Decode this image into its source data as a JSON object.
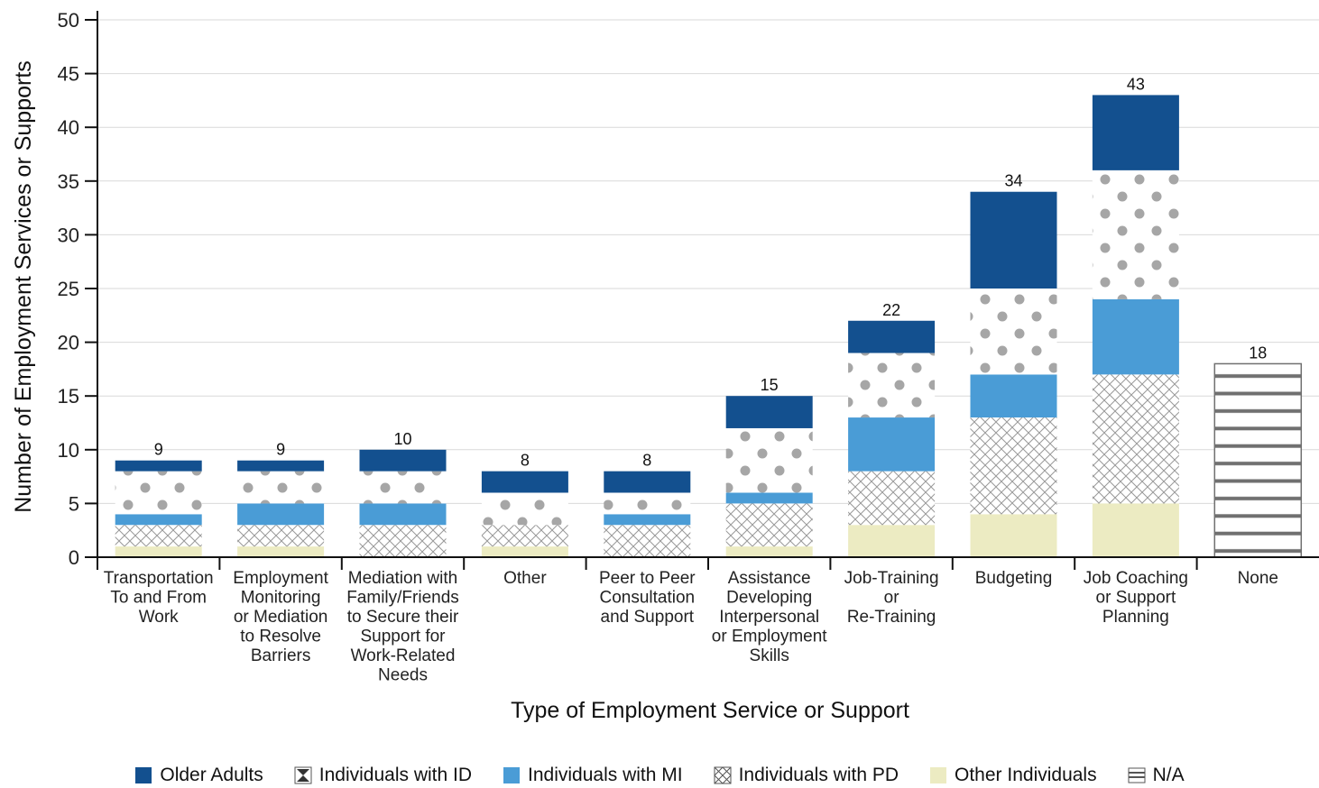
{
  "chart_data": {
    "type": "bar",
    "stacked": true,
    "title": "",
    "xlabel": "Type of Employment Service or Support",
    "ylabel": "Number of Employment Services or Supports",
    "ylim": [
      0,
      50
    ],
    "yticks": [
      0,
      5,
      10,
      15,
      20,
      25,
      30,
      35,
      40,
      45,
      50
    ],
    "grid": true,
    "legend_position": "bottom",
    "categories": [
      [
        "Transportation",
        "To and From",
        "Work"
      ],
      [
        "Employment",
        "Monitoring",
        "or Mediation",
        "to Resolve",
        "Barriers"
      ],
      [
        "Mediation with",
        "Family/Friends",
        "to Secure their",
        "Support for",
        "Work-Related",
        "Needs"
      ],
      [
        "Other"
      ],
      [
        "Peer to Peer",
        "Consultation",
        "and Support"
      ],
      [
        "Assistance",
        "Developing",
        "Interpersonal",
        "or Employment",
        "Skills"
      ],
      [
        "Job-Training",
        "or",
        "Re-Training"
      ],
      [
        "Budgeting"
      ],
      [
        "Job Coaching",
        "or Support",
        "Planning"
      ],
      [
        "None"
      ]
    ],
    "totals": [
      "9",
      "9",
      "10",
      "8",
      "8",
      "15",
      "22",
      "34",
      "43",
      "18"
    ],
    "series": [
      {
        "name": "Other Individuals",
        "key": "other",
        "color": "#ecebc2",
        "pattern": "solid",
        "values": [
          1,
          1,
          0,
          1,
          0,
          1,
          3,
          4,
          5,
          0
        ]
      },
      {
        "name": "Individuals with PD",
        "key": "pd",
        "color": "#999999",
        "pattern": "crosshatch",
        "values": [
          2,
          2,
          3,
          2,
          3,
          4,
          5,
          9,
          12,
          0
        ]
      },
      {
        "name": "Individuals with MI",
        "key": "mi",
        "color": "#4a9cd6",
        "pattern": "solid",
        "values": [
          1,
          2,
          2,
          0,
          1,
          1,
          5,
          4,
          7,
          0
        ]
      },
      {
        "name": "Individuals with ID",
        "key": "id",
        "color": "#a6a6a6",
        "pattern": "dots",
        "values": [
          4,
          3,
          3,
          3,
          2,
          6,
          6,
          8,
          12,
          0
        ]
      },
      {
        "name": "Older Adults",
        "key": "older",
        "color": "#13508f",
        "pattern": "solid",
        "values": [
          1,
          1,
          2,
          2,
          2,
          3,
          3,
          9,
          7,
          0
        ]
      },
      {
        "name": "N/A",
        "key": "na",
        "color": "#707070",
        "pattern": "stripes",
        "values": [
          0,
          0,
          0,
          0,
          0,
          0,
          0,
          0,
          0,
          18
        ]
      }
    ]
  },
  "legend": [
    {
      "label": "Older Adults",
      "key": "older"
    },
    {
      "label": "Individuals with ID",
      "key": "id"
    },
    {
      "label": "Individuals with MI",
      "key": "mi"
    },
    {
      "label": "Individuals with PD",
      "key": "pd"
    },
    {
      "label": "Other Individuals",
      "key": "other"
    },
    {
      "label": "N/A",
      "key": "na"
    }
  ]
}
